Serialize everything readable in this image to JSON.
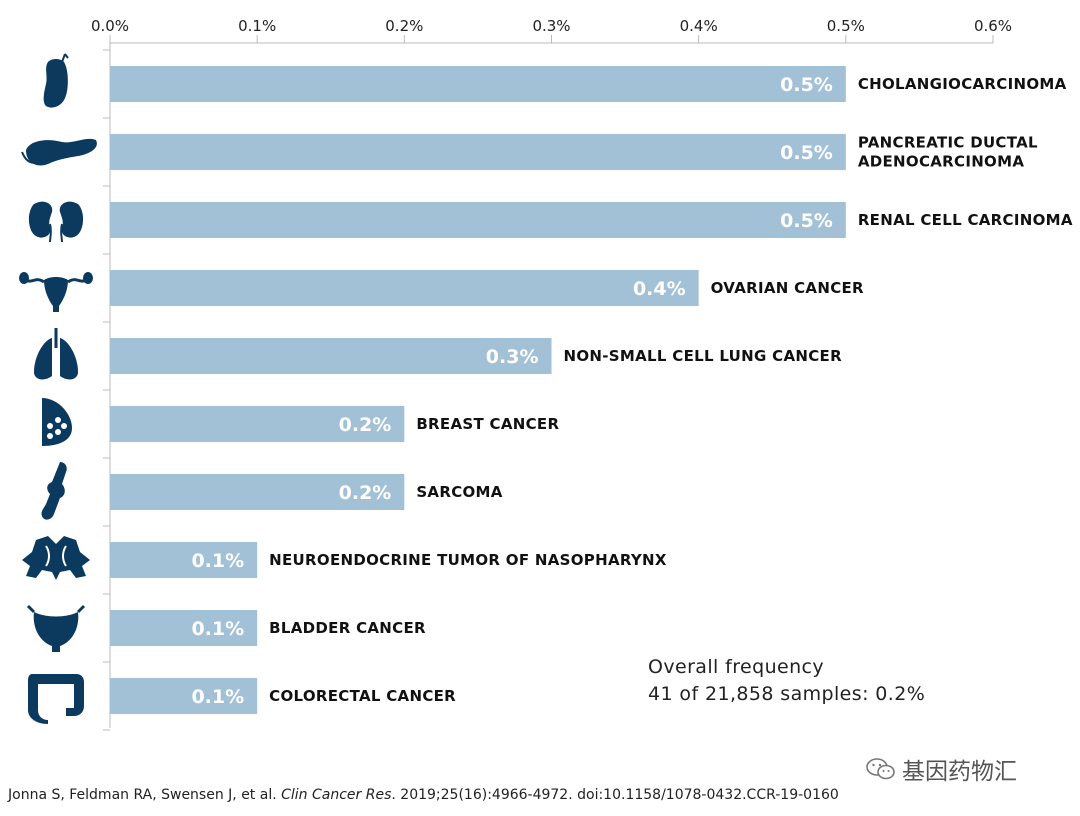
{
  "chart_data": {
    "type": "bar",
    "orientation": "horizontal",
    "categories": [
      [
        "CHOLANGIOCARCINOMA"
      ],
      [
        "PANCREATIC DUCTAL",
        "ADENOCARCINOMA"
      ],
      [
        "RENAL CELL CARCINOMA"
      ],
      [
        "OVARIAN CANCER"
      ],
      [
        "NON-SMALL CELL LUNG CANCER"
      ],
      [
        "BREAST CANCER"
      ],
      [
        "SARCOMA"
      ],
      [
        "NEUROENDOCRINE TUMOR OF NASOPHARYNX"
      ],
      [
        "BLADDER CANCER"
      ],
      [
        "COLORECTAL CANCER"
      ]
    ],
    "values": [
      0.5,
      0.5,
      0.5,
      0.4,
      0.3,
      0.2,
      0.2,
      0.1,
      0.1,
      0.1
    ],
    "value_labels": [
      "0.5%",
      "0.5%",
      "0.5%",
      "0.4%",
      "0.3%",
      "0.2%",
      "0.2%",
      "0.1%",
      "0.1%",
      "0.1%"
    ],
    "category_icons": [
      "gallbladder-icon",
      "pancreas-icon",
      "kidneys-icon",
      "uterus-icon",
      "lungs-icon",
      "breast-icon",
      "bone-joint-icon",
      "nasal-sinus-icon",
      "bladder-icon",
      "colon-icon"
    ],
    "xlim": [
      0,
      0.6
    ],
    "x_ticks": [
      0,
      0.1,
      0.2,
      0.3,
      0.4,
      0.5,
      0.6
    ],
    "x_tick_labels": [
      "0.0%",
      "0.1%",
      "0.2%",
      "0.3%",
      "0.4%",
      "0.5%",
      "0.6%"
    ],
    "axis_position": "top",
    "grid": false,
    "colors": {
      "bar": "#a2c1d6",
      "icon": "#0c3a5e",
      "axis": "#bbbbbb"
    }
  },
  "annotation": {
    "line1": "Overall frequency",
    "line2": "41 of 21,858 samples: 0.2%"
  },
  "citation": {
    "authors": "Jonna S, Feldman RA, Swensen J, et al.",
    "journal": "Clin Cancer Res",
    "details": ". 2019;25(16):4966-4972. doi:10.1158/1078-0432.CCR-19-0160"
  },
  "watermark": {
    "text": "基因药物汇",
    "icon": "wechat-icon"
  }
}
